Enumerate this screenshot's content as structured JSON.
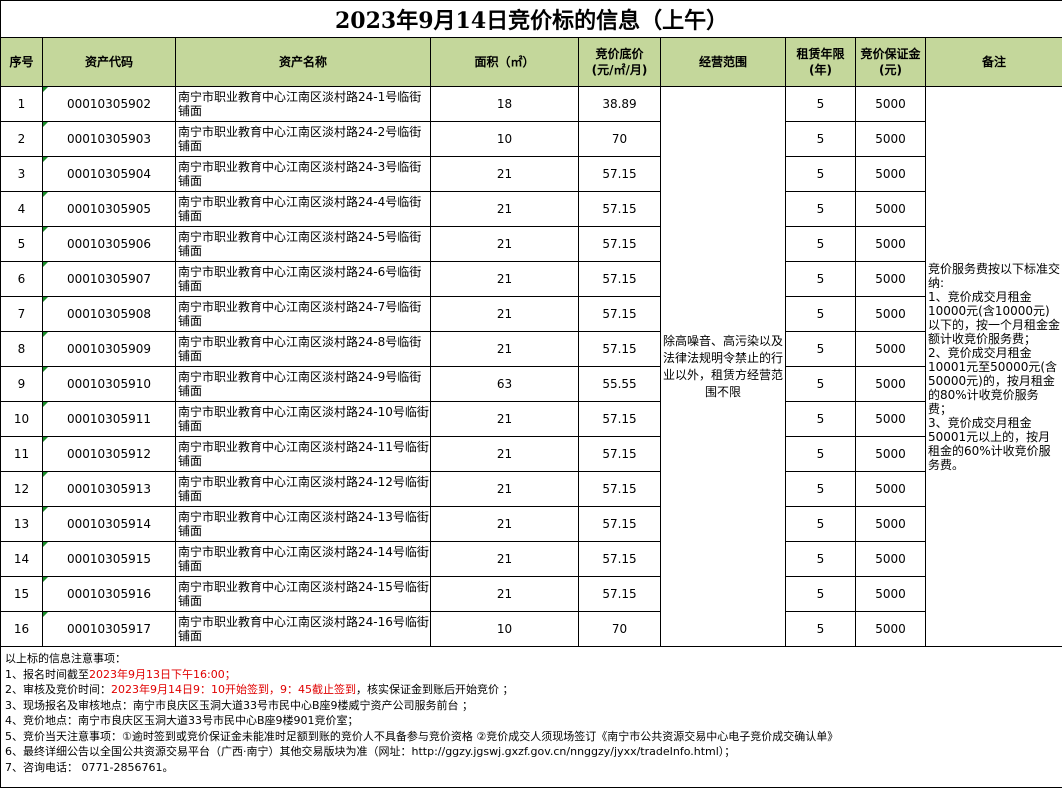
{
  "title": "2023年9月14日竞价标的信息（上午）",
  "headers": [
    "序号",
    "资产代码",
    "资产名称",
    "面积（㎡）",
    "竞价底价\n(元/㎡/月)",
    "经营范围",
    "租赁年限\n(年)",
    "竞价保证金\n(元)",
    "备注"
  ],
  "rows": [
    {
      "no": "1",
      "code": "00010305902",
      "name": "南宁市职业教育中心江南区淡村路24-1号临街铺面",
      "area": "18",
      "price": "38.89",
      "years": "5",
      "deposit": "5000"
    },
    {
      "no": "2",
      "code": "00010305903",
      "name": "南宁市职业教育中心江南区淡村路24-2号临街铺面",
      "area": "10",
      "price": "70",
      "years": "5",
      "deposit": "5000"
    },
    {
      "no": "3",
      "code": "00010305904",
      "name": "南宁市职业教育中心江南区淡村路24-3号临街铺面",
      "area": "21",
      "price": "57.15",
      "years": "5",
      "deposit": "5000"
    },
    {
      "no": "4",
      "code": "00010305905",
      "name": "南宁市职业教育中心江南区淡村路24-4号临街铺面",
      "area": "21",
      "price": "57.15",
      "years": "5",
      "deposit": "5000"
    },
    {
      "no": "5",
      "code": "00010305906",
      "name": "南宁市职业教育中心江南区淡村路24-5号临街铺面",
      "area": "21",
      "price": "57.15",
      "years": "5",
      "deposit": "5000"
    },
    {
      "no": "6",
      "code": "00010305907",
      "name": "南宁市职业教育中心江南区淡村路24-6号临街铺面",
      "area": "21",
      "price": "57.15",
      "years": "5",
      "deposit": "5000"
    },
    {
      "no": "7",
      "code": "00010305908",
      "name": "南宁市职业教育中心江南区淡村路24-7号临街铺面",
      "area": "21",
      "price": "57.15",
      "years": "5",
      "deposit": "5000"
    },
    {
      "no": "8",
      "code": "00010305909",
      "name": "南宁市职业教育中心江南区淡村路24-8号临街铺面",
      "area": "21",
      "price": "57.15",
      "years": "5",
      "deposit": "5000"
    },
    {
      "no": "9",
      "code": "00010305910",
      "name": "南宁市职业教育中心江南区淡村路24-9号临街铺面",
      "area": "63",
      "price": "55.55",
      "years": "5",
      "deposit": "5000"
    },
    {
      "no": "10",
      "code": "00010305911",
      "name": "南宁市职业教育中心江南区淡村路24-10号临街铺面",
      "area": "21",
      "price": "57.15",
      "years": "5",
      "deposit": "5000"
    },
    {
      "no": "11",
      "code": "00010305912",
      "name": "南宁市职业教育中心江南区淡村路24-11号临街铺面",
      "area": "21",
      "price": "57.15",
      "years": "5",
      "deposit": "5000"
    },
    {
      "no": "12",
      "code": "00010305913",
      "name": "南宁市职业教育中心江南区淡村路24-12号临街铺面",
      "area": "21",
      "price": "57.15",
      "years": "5",
      "deposit": "5000"
    },
    {
      "no": "13",
      "code": "00010305914",
      "name": "南宁市职业教育中心江南区淡村路24-13号临街铺面",
      "area": "21",
      "price": "57.15",
      "years": "5",
      "deposit": "5000"
    },
    {
      "no": "14",
      "code": "00010305915",
      "name": "南宁市职业教育中心江南区淡村路24-14号临街铺面",
      "area": "21",
      "price": "57.15",
      "years": "5",
      "deposit": "5000"
    },
    {
      "no": "15",
      "code": "00010305916",
      "name": "南宁市职业教育中心江南区淡村路24-15号临街铺面",
      "area": "21",
      "price": "57.15",
      "years": "5",
      "deposit": "5000"
    },
    {
      "no": "16",
      "code": "00010305917",
      "name": "南宁市职业教育中心江南区淡村路24-16号临街铺面",
      "area": "10",
      "price": "70",
      "years": "5",
      "deposit": "5000"
    }
  ],
  "scope": "除高噪音、高污染以及法律法规明令禁止的行业以外，租赁方经营范围不限",
  "remark": "竞价服务费按以下标准交纳:\n1、竞价成交月租金10000元(含10000元)以下的，按一个月租金金额计收竞价服务费；\n2、竞价成交月租金10001元至50000元(含50000元)的，按月租金的80%计收竞价服务费；\n3、竞价成交月租金50001元以上的，按月租金的60%计收竞价服务费。",
  "notes": {
    "heading": "以上标的信息注意事项：",
    "line1": {
      "a": "1、报名时间截至",
      "red": "2023年9月13日下午16:00；"
    },
    "line2": {
      "a": "2、审核及竞价时间：",
      "red": "2023年9月14日9：10开始签到，9：45截止签到",
      "b": "，核实保证金到账后开始竞价 ；"
    },
    "line3": "3、现场报名及审核地点：南宁市良庆区玉洞大道33号市民中心B座9楼威宁资产公司服务前台 ；",
    "line4": "4、竞价地点：南宁市良庆区玉洞大道33号市民中心B座9楼901竞价室；",
    "line5": "5、竞价当天注意事项：①逾时签到或竞价保证金未能准时足额到账的竞价人不具备参与竞价资格 ②竞价成交人须现场签订《南宁市公共资源交易中心电子竞价成交确认单》",
    "line6": "6、最终详细公告以全国公共资源交易平台（广西·南宁）其他交易版块为准（网址：http://ggzy.jgswj.gxzf.gov.cn/nnggzy/jyxx/tradeInfo.html）；",
    "line7": "7、咨询电话： 0771-2856761。"
  }
}
